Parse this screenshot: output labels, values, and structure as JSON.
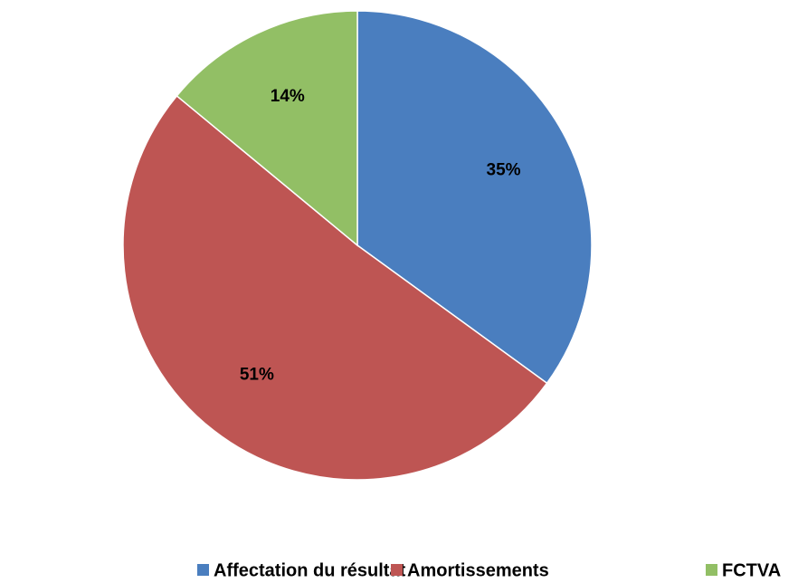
{
  "chart_data": {
    "type": "pie",
    "categories": [
      "Affectation du résultat",
      "Amortissements",
      "FCTVA"
    ],
    "values": [
      35,
      51,
      14
    ],
    "value_labels": [
      "35%",
      "51%",
      "14%"
    ],
    "colors": [
      "#4a7ebf",
      "#be5553",
      "#92bf65"
    ],
    "legend": "bottom"
  }
}
